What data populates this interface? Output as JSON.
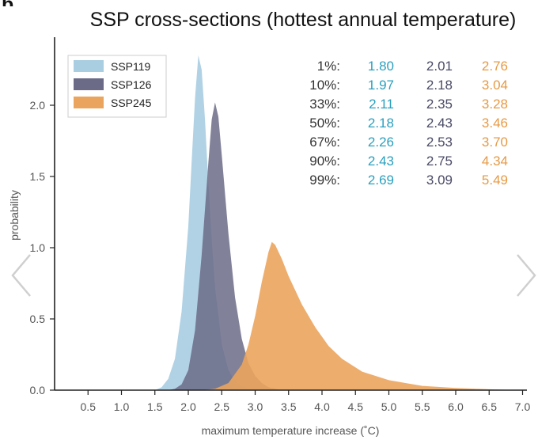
{
  "chart_data": {
    "type": "area",
    "title": "SSP cross-sections (hottest annual temperature)",
    "panel_letter": "b.",
    "xlabel": "maximum temperature increase (˚C)",
    "ylabel": "probability",
    "xlim": [
      0.0,
      7.0
    ],
    "ylim": [
      0.0,
      2.4
    ],
    "x_ticks": [
      "0.5",
      "1.0",
      "1.5",
      "2.0",
      "2.5",
      "3.0",
      "3.5",
      "4.0",
      "4.5",
      "5.0",
      "5.5",
      "6.0",
      "6.5",
      "7.0"
    ],
    "y_ticks": [
      "0.0",
      "0.5",
      "1.0",
      "1.5",
      "2.0"
    ],
    "grid": false,
    "legend_position": "top-left",
    "series": [
      {
        "name": "SSP119",
        "color": "#a9cde1",
        "peak_x": 2.15,
        "peak_y": 2.35,
        "points": [
          [
            1.5,
            0.0
          ],
          [
            1.6,
            0.02
          ],
          [
            1.7,
            0.08
          ],
          [
            1.8,
            0.22
          ],
          [
            1.9,
            0.55
          ],
          [
            2.0,
            1.15
          ],
          [
            2.05,
            1.6
          ],
          [
            2.1,
            2.05
          ],
          [
            2.15,
            2.35
          ],
          [
            2.2,
            2.25
          ],
          [
            2.25,
            1.9
          ],
          [
            2.3,
            1.45
          ],
          [
            2.35,
            1.05
          ],
          [
            2.4,
            0.72
          ],
          [
            2.5,
            0.32
          ],
          [
            2.6,
            0.14
          ],
          [
            2.7,
            0.06
          ],
          [
            2.8,
            0.02
          ],
          [
            2.9,
            0.01
          ],
          [
            3.0,
            0.0
          ]
        ]
      },
      {
        "name": "SSP126",
        "color": "#6b6b87",
        "peak_x": 2.4,
        "peak_y": 2.02,
        "points": [
          [
            1.7,
            0.0
          ],
          [
            1.8,
            0.01
          ],
          [
            1.9,
            0.04
          ],
          [
            2.0,
            0.14
          ],
          [
            2.1,
            0.42
          ],
          [
            2.2,
            0.95
          ],
          [
            2.3,
            1.6
          ],
          [
            2.35,
            1.9
          ],
          [
            2.4,
            2.02
          ],
          [
            2.45,
            1.92
          ],
          [
            2.5,
            1.65
          ],
          [
            2.6,
            1.1
          ],
          [
            2.7,
            0.65
          ],
          [
            2.8,
            0.36
          ],
          [
            2.9,
            0.19
          ],
          [
            3.0,
            0.1
          ],
          [
            3.1,
            0.05
          ],
          [
            3.2,
            0.02
          ],
          [
            3.4,
            0.0
          ]
        ]
      },
      {
        "name": "SSP245",
        "color": "#eba45d",
        "peak_x": 3.25,
        "peak_y": 1.04,
        "points": [
          [
            2.2,
            0.0
          ],
          [
            2.4,
            0.01
          ],
          [
            2.6,
            0.05
          ],
          [
            2.8,
            0.18
          ],
          [
            2.9,
            0.32
          ],
          [
            3.0,
            0.52
          ],
          [
            3.1,
            0.76
          ],
          [
            3.2,
            0.97
          ],
          [
            3.25,
            1.04
          ],
          [
            3.3,
            1.02
          ],
          [
            3.4,
            0.92
          ],
          [
            3.5,
            0.8
          ],
          [
            3.7,
            0.6
          ],
          [
            3.9,
            0.44
          ],
          [
            4.1,
            0.31
          ],
          [
            4.3,
            0.22
          ],
          [
            4.6,
            0.13
          ],
          [
            5.0,
            0.07
          ],
          [
            5.5,
            0.03
          ],
          [
            6.0,
            0.015
          ],
          [
            6.5,
            0.006
          ],
          [
            7.0,
            0.0
          ]
        ]
      }
    ],
    "quantile_table": {
      "rows": [
        {
          "label": "1%:",
          "values": [
            "1.80",
            "2.01",
            "2.76"
          ]
        },
        {
          "label": "10%:",
          "values": [
            "1.97",
            "2.18",
            "3.04"
          ]
        },
        {
          "label": "33%:",
          "values": [
            "2.11",
            "2.35",
            "3.28"
          ]
        },
        {
          "label": "50%:",
          "values": [
            "2.18",
            "2.43",
            "3.46"
          ]
        },
        {
          "label": "67%:",
          "values": [
            "2.26",
            "2.53",
            "3.70"
          ]
        },
        {
          "label": "90%:",
          "values": [
            "2.43",
            "2.75",
            "4.34"
          ]
        },
        {
          "label": "99%:",
          "values": [
            "2.69",
            "3.09",
            "5.49"
          ]
        }
      ],
      "column_colors": [
        "#2a9fbe",
        "#4a4a66",
        "#e69a44"
      ]
    }
  },
  "navigation": {
    "prev_icon": "chevron-left-icon",
    "next_icon": "chevron-right-icon"
  }
}
